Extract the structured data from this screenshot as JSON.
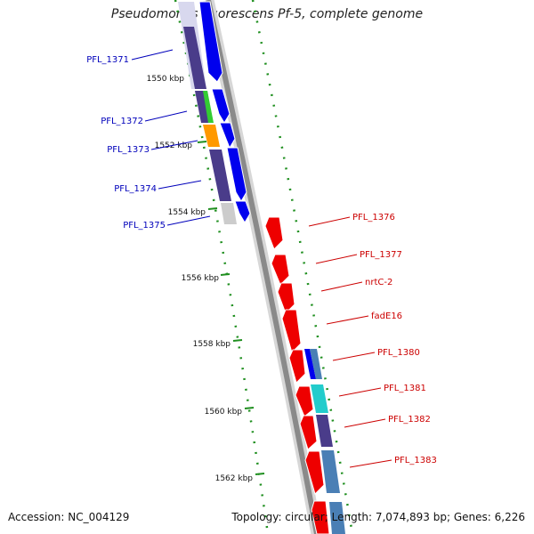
{
  "title": "Pseudomonas fluorescens Pf-5, complete genome",
  "accession": "Accession: NC_004129",
  "topology": "Topology: circular;",
  "length": "Length: 7,074,893 bp;",
  "genes_count": "Genes: 6,226",
  "colors": {
    "backbone": "#8a8a8a",
    "tick": "#1f8f1f",
    "forward_label": "#0000bb",
    "reverse_label": "#cc0000",
    "forward_cds": "#0000ee",
    "reverse_cds": "#ee0000"
  },
  "scale": {
    "unit": "kbp",
    "ticks": [
      {
        "kbp": 1550,
        "label": "1550 kbp"
      },
      {
        "kbp": 1552,
        "label": "1552 kbp"
      },
      {
        "kbp": 1554,
        "label": "1554 kbp"
      },
      {
        "kbp": 1556,
        "label": "1556 kbp"
      },
      {
        "kbp": 1558,
        "label": "1558 kbp"
      },
      {
        "kbp": 1560,
        "label": "1560 kbp"
      },
      {
        "kbp": 1562,
        "label": "1562 kbp"
      }
    ]
  },
  "genes": [
    {
      "name": "PFL_1371",
      "strand": "forward"
    },
    {
      "name": "PFL_1372",
      "strand": "forward"
    },
    {
      "name": "PFL_1373",
      "strand": "forward"
    },
    {
      "name": "PFL_1374",
      "strand": "forward"
    },
    {
      "name": "PFL_1375",
      "strand": "forward"
    },
    {
      "name": "PFL_1376",
      "strand": "reverse"
    },
    {
      "name": "PFL_1377",
      "strand": "reverse"
    },
    {
      "name": "nrtC-2",
      "strand": "reverse"
    },
    {
      "name": "fadE16",
      "strand": "reverse"
    },
    {
      "name": "PFL_1380",
      "strand": "reverse"
    },
    {
      "name": "PFL_1381",
      "strand": "reverse"
    },
    {
      "name": "PFL_1382",
      "strand": "reverse"
    },
    {
      "name": "PFL_1383",
      "strand": "reverse"
    }
  ]
}
